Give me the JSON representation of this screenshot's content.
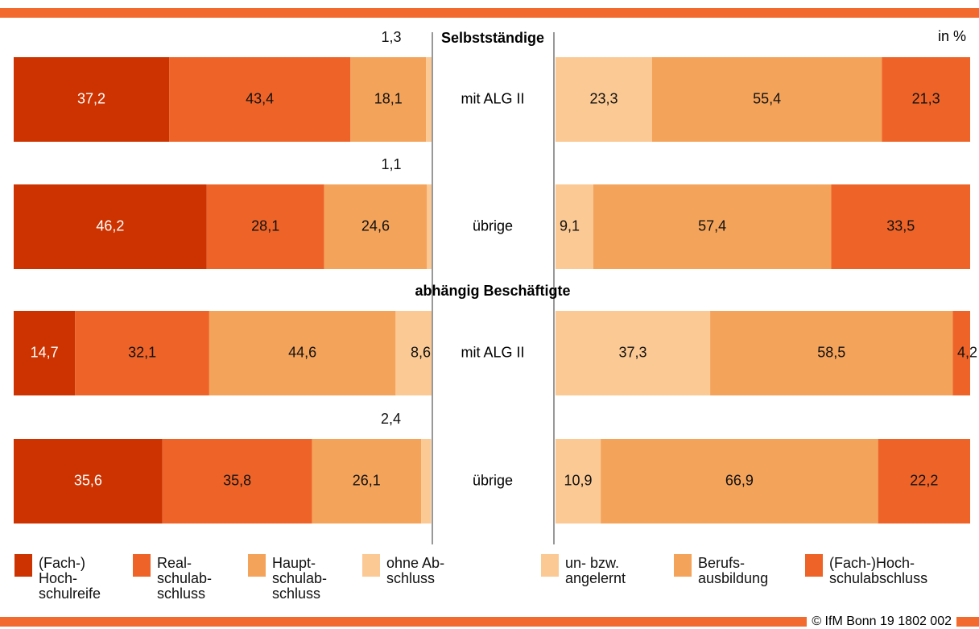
{
  "unit_label": "in %",
  "footer": "© IfM Bonn 19 1802 002",
  "groups": [
    "Selbstständige",
    "abhängig Beschäftigte"
  ],
  "chart_data": [
    {
      "type": "bar",
      "orientation": "horizontal",
      "stacked": true,
      "xlim": [
        0,
        100
      ],
      "categories": [
        "mit ALG II",
        "übrige",
        "mit ALG II",
        "übrige"
      ],
      "series": [
        {
          "name": "(Fach-)\nHoch-\nschulreife",
          "color": "#cc3300",
          "values": [
            37.2,
            46.2,
            14.7,
            35.6
          ],
          "value_labels": [
            "37,2",
            "46,2",
            "14,7",
            "35,6"
          ]
        },
        {
          "name": "Real-\nschulab-\nschluss",
          "color": "#ee6428",
          "values": [
            43.4,
            28.1,
            32.1,
            35.8
          ],
          "value_labels": [
            "43,4",
            "28,1",
            "32,1",
            "35,8"
          ]
        },
        {
          "name": "Haupt-\nschulab-\nschluss",
          "color": "#f4a35a",
          "values": [
            18.1,
            24.6,
            44.6,
            26.1
          ],
          "value_labels": [
            "18,1",
            "24,6",
            "44,6",
            "26,1"
          ]
        },
        {
          "name": "ohne Ab-\nschluss",
          "color": "#fbc994",
          "values": [
            1.3,
            1.1,
            8.6,
            2.4
          ],
          "value_labels": [
            "1,3",
            "1,1",
            "8,6",
            "2,4"
          ]
        }
      ]
    },
    {
      "type": "bar",
      "orientation": "horizontal",
      "stacked": true,
      "xlim": [
        0,
        100
      ],
      "series": [
        {
          "name": "un- bzw.\nangelernt",
          "color": "#fbc994",
          "values": [
            23.3,
            9.1,
            37.3,
            10.9
          ],
          "value_labels": [
            "23,3",
            "9,1",
            "37,3",
            "10,9"
          ]
        },
        {
          "name": "Berufs-\nausbildung",
          "color": "#f4a35a",
          "values": [
            55.4,
            57.4,
            58.5,
            66.9
          ],
          "value_labels": [
            "55,4",
            "57,4",
            "58,5",
            "66,9"
          ]
        },
        {
          "name": "(Fach-)Hoch-\nschulabschluss",
          "color": "#ee6428",
          "values": [
            21.3,
            33.5,
            4.2,
            22.2
          ],
          "value_labels": [
            "21,3",
            "33,5",
            "4,2",
            "22,2"
          ]
        }
      ]
    }
  ]
}
